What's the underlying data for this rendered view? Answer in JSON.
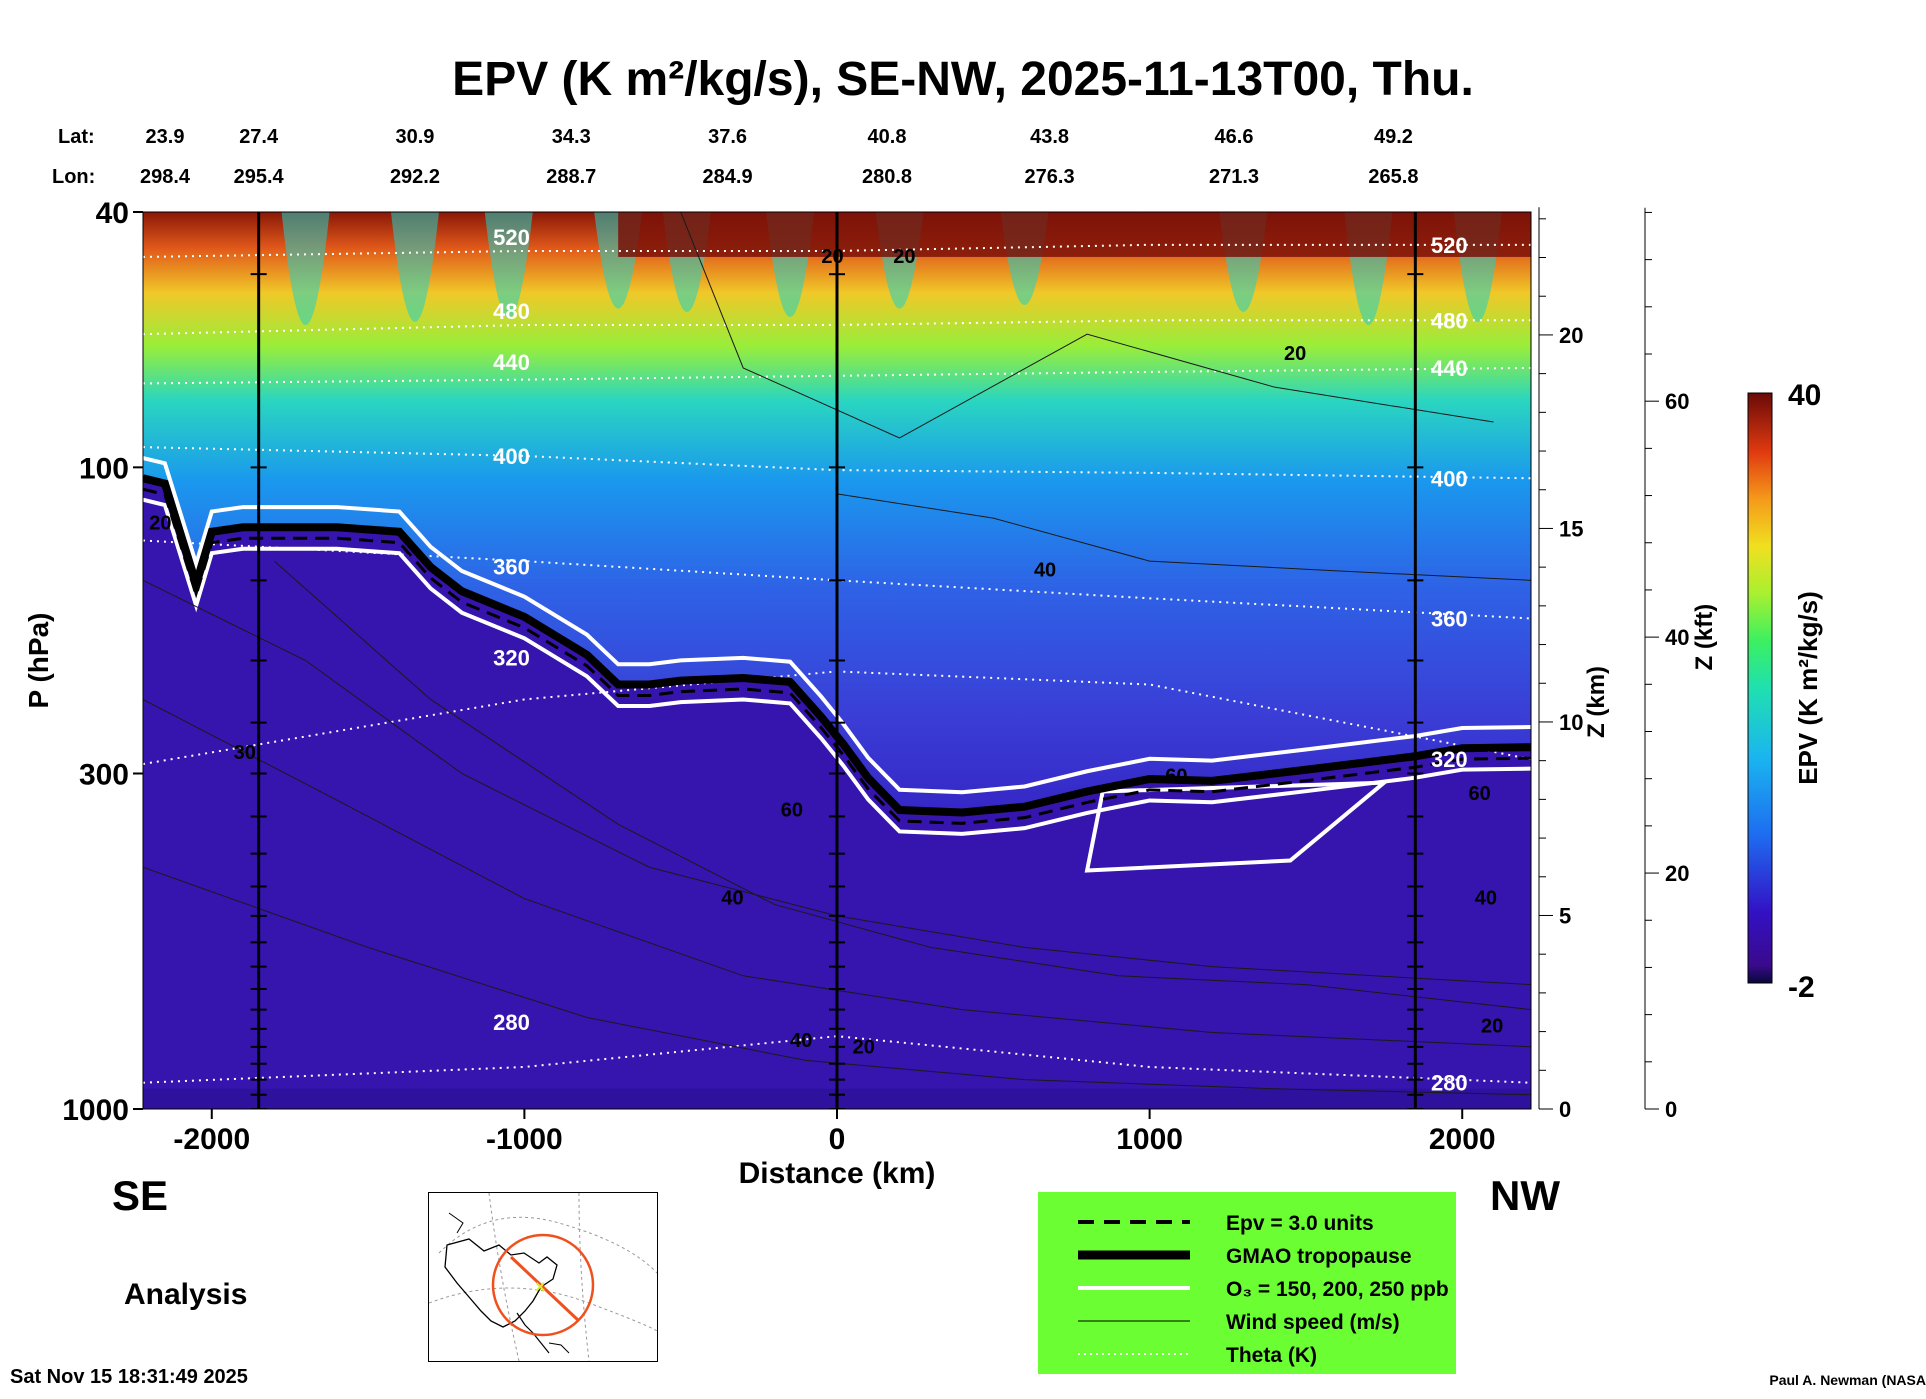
{
  "chart_data": {
    "type": "heatmap",
    "title": "EPV (K m²/kg/s), SE-NW, 2025-11-13T00, Thu.",
    "xlabel": "Distance (km)",
    "ylabel": "P (hPa)",
    "right_axis_label": "Z (km)",
    "far_right_axis_label": "Z (kft)",
    "xlim": [
      -2220,
      2220
    ],
    "ylim": [
      1000,
      40
    ],
    "y_scale": "log",
    "x_ticks": [
      "-2000",
      "-1000",
      "0",
      "1000",
      "2000"
    ],
    "x_tick_values": [
      -2000,
      -1000,
      0,
      1000,
      2000
    ],
    "y_ticks": [
      "40",
      "100",
      "300",
      "1000"
    ],
    "y_tick_values": [
      40,
      100,
      300,
      1000
    ],
    "z_km_ticks": [
      "20",
      "15",
      "10",
      "5",
      "0"
    ],
    "z_km_values": [
      20,
      15,
      10,
      5,
      0
    ],
    "z_kft_ticks": [
      "60",
      "40",
      "20",
      "0"
    ],
    "z_kft_values": [
      60,
      40,
      20,
      0
    ],
    "lat_label": "Lat:",
    "lon_label": "Lon:",
    "lats": [
      "23.9",
      "27.4",
      "30.9",
      "34.3",
      "37.6",
      "40.8",
      "43.8",
      "46.6",
      "49.2"
    ],
    "lons": [
      "298.4",
      "295.4",
      "292.2",
      "288.7",
      "284.9",
      "280.8",
      "276.3",
      "271.3",
      "265.8"
    ],
    "vertical_markers_km": [
      -1850,
      0,
      1850
    ],
    "colorbar": {
      "label": "EPV (K m²/kg/s)",
      "min": "-2",
      "max": "40",
      "min_value": -2,
      "max_value": 40
    },
    "tropopause_pressure": [
      [
        -2220,
        104
      ],
      [
        -2150,
        106
      ],
      [
        -2050,
        152
      ],
      [
        -2000,
        126
      ],
      [
        -1900,
        124
      ],
      [
        -1600,
        124
      ],
      [
        -1400,
        126
      ],
      [
        -1300,
        143
      ],
      [
        -1200,
        156
      ],
      [
        -1000,
        171
      ],
      [
        -800,
        196
      ],
      [
        -700,
        218
      ],
      [
        -600,
        218
      ],
      [
        -500,
        215
      ],
      [
        -300,
        213
      ],
      [
        -150,
        216
      ],
      [
        -50,
        245
      ],
      [
        20,
        270
      ],
      [
        100,
        305
      ],
      [
        200,
        342
      ],
      [
        400,
        345
      ],
      [
        600,
        338
      ],
      [
        800,
        320
      ],
      [
        1000,
        306
      ],
      [
        1200,
        308
      ],
      [
        1500,
        296
      ],
      [
        1850,
        282
      ],
      [
        2000,
        274
      ],
      [
        2220,
        273
      ]
    ],
    "theta_contours": [
      {
        "label": "520",
        "pressure": [
          [
            -2220,
            47
          ],
          [
            -1000,
            46
          ],
          [
            0,
            46
          ],
          [
            1000,
            45
          ],
          [
            2220,
            45
          ]
        ]
      },
      {
        "label": "480",
        "pressure": [
          [
            -2220,
            62
          ],
          [
            -1000,
            60
          ],
          [
            0,
            60
          ],
          [
            1000,
            59
          ],
          [
            2220,
            59
          ]
        ]
      },
      {
        "label": "440",
        "pressure": [
          [
            -2220,
            74
          ],
          [
            -1000,
            73
          ],
          [
            0,
            72
          ],
          [
            1000,
            71
          ],
          [
            2220,
            70
          ]
        ]
      },
      {
        "label": "400",
        "pressure": [
          [
            -2220,
            93
          ],
          [
            -1000,
            96
          ],
          [
            0,
            101
          ],
          [
            1000,
            102
          ],
          [
            2220,
            104
          ]
        ]
      },
      {
        "label": "360",
        "pressure": [
          [
            -2220,
            130
          ],
          [
            -1000,
            140
          ],
          [
            0,
            150
          ],
          [
            1000,
            160
          ],
          [
            2220,
            172
          ]
        ]
      },
      {
        "label": "320",
        "pressure": [
          [
            -2220,
            290
          ],
          [
            -1000,
            230
          ],
          [
            0,
            208
          ],
          [
            1000,
            218
          ],
          [
            2220,
            285
          ]
        ]
      },
      {
        "label": "280",
        "pressure": [
          [
            -2220,
            910
          ],
          [
            -1000,
            860
          ],
          [
            0,
            770
          ],
          [
            1000,
            860
          ],
          [
            2220,
            910
          ]
        ]
      }
    ],
    "wind_speed_labels": [
      "20",
      "20",
      "20",
      "20",
      "40",
      "40",
      "40",
      "60",
      "60",
      "60",
      "20",
      "20",
      "30",
      "40"
    ],
    "legend_placement": "bottom-right",
    "legend": [
      {
        "style": "dashed",
        "label": "Epv = 3.0 units"
      },
      {
        "style": "thick",
        "label": "GMAO tropopause"
      },
      {
        "style": "white",
        "label": "O₃ = 150, 200, 250 ppb"
      },
      {
        "style": "thin",
        "label": "Wind speed (m/s)"
      },
      {
        "style": "dotted",
        "label": "Theta (K)"
      }
    ],
    "legend_bg": "#6bff33"
  },
  "labels": {
    "se": "SE",
    "nw": "NW",
    "analysis": "Analysis",
    "timestamp": "Sat Nov 15 18:31:49 2025",
    "author": "Paul A. Newman (NASA"
  }
}
